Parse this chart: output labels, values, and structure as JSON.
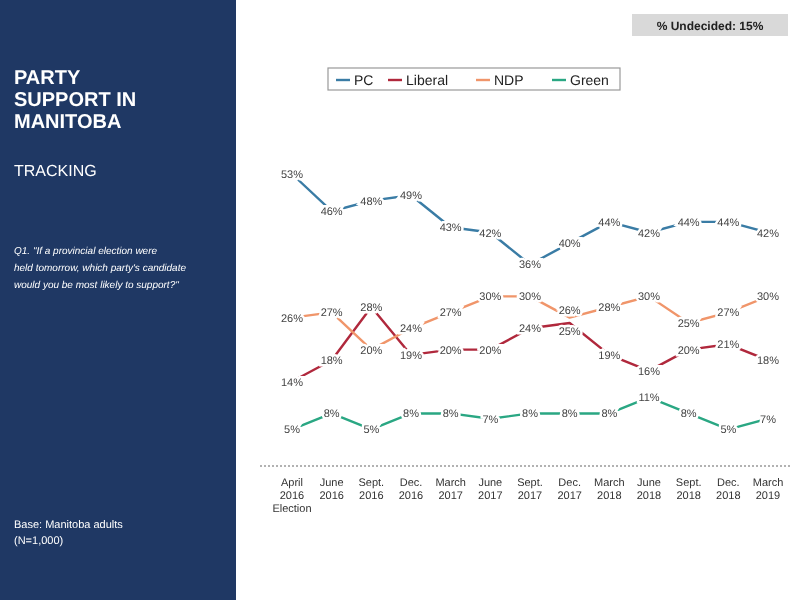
{
  "chart_data": {
    "type": "line",
    "title": "PARTY SUPPORT IN MANITOBA",
    "subtitle": "TRACKING",
    "annotations": [
      "Q1. \"If a provincial election were held tomorrow, which party's candidate would you be most likely to support?\"",
      "Base: Manitoba adults (N=1,000)",
      "% Undecided: 15%"
    ],
    "categories": [
      "April 2016 Election",
      "June 2016",
      "Sept. 2016",
      "Dec. 2016",
      "March 2017",
      "June 2017",
      "Sept. 2017",
      "Dec. 2017",
      "March 2018",
      "June 2018",
      "Sept. 2018",
      "Dec. 2018",
      "March 2019"
    ],
    "series": [
      {
        "name": "PC",
        "color": "#3a7ca5",
        "values": [
          53,
          46,
          48,
          49,
          43,
          42,
          36,
          40,
          44,
          42,
          44,
          44,
          42
        ],
        "value_labels": [
          "53%",
          "46%",
          "48%",
          "49%",
          "43%",
          "42%",
          "36%",
          "40%",
          "44%",
          "42%",
          "44%",
          "44%",
          "42%"
        ]
      },
      {
        "name": "Liberal",
        "color": "#b0283c",
        "values": [
          14,
          18,
          28,
          19,
          20,
          20,
          24,
          25,
          19,
          16,
          20,
          21,
          18
        ],
        "value_labels": [
          "14%",
          "18%",
          "28%",
          "19%",
          "20%",
          "20%",
          "24%",
          "25%",
          "19%",
          "16%",
          "20%",
          "21%",
          "18%"
        ]
      },
      {
        "name": "NDP",
        "color": "#f0956a",
        "values": [
          26,
          27,
          20,
          24,
          27,
          30,
          30,
          26,
          28,
          30,
          25,
          27,
          30
        ],
        "value_labels": [
          "26%",
          "27%",
          "20%",
          "24%",
          "27%",
          "30%",
          "30%",
          "26%",
          "28%",
          "30%",
          "25%",
          "27%",
          "30%"
        ]
      },
      {
        "name": "Green",
        "color": "#2aa783",
        "values": [
          5,
          8,
          5,
          8,
          8,
          7,
          8,
          8,
          8,
          11,
          8,
          5,
          7
        ],
        "value_labels": [
          "5%",
          "8%",
          "5%",
          "8%",
          "8%",
          "7%",
          "8%",
          "8%",
          "8%",
          "11%",
          "8%",
          "5%",
          "7%"
        ]
      }
    ],
    "legend": "top",
    "marker": "none",
    "line_style": "solid"
  }
}
